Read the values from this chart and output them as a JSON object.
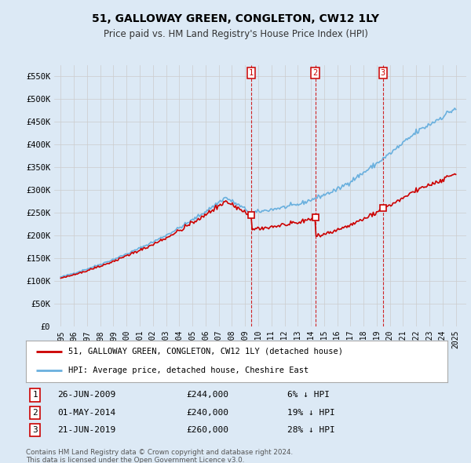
{
  "title": "51, GALLOWAY GREEN, CONGLETON, CW12 1LY",
  "subtitle": "Price paid vs. HM Land Registry's House Price Index (HPI)",
  "legend_line1": "51, GALLOWAY GREEN, CONGLETON, CW12 1LY (detached house)",
  "legend_line2": "HPI: Average price, detached house, Cheshire East",
  "footer1": "Contains HM Land Registry data © Crown copyright and database right 2024.",
  "footer2": "This data is licensed under the Open Government Licence v3.0.",
  "transactions": [
    {
      "num": 1,
      "date": "26-JUN-2009",
      "price": "£244,000",
      "hpi": "6% ↓ HPI"
    },
    {
      "num": 2,
      "date": "01-MAY-2014",
      "price": "£240,000",
      "hpi": "19% ↓ HPI"
    },
    {
      "num": 3,
      "date": "21-JUN-2019",
      "price": "£260,000",
      "hpi": "28% ↓ HPI"
    }
  ],
  "transaction_dates": [
    2009.48,
    2014.33,
    2019.47
  ],
  "transaction_prices": [
    244000,
    240000,
    260000
  ],
  "ylim": [
    0,
    575000
  ],
  "yticks": [
    0,
    50000,
    100000,
    150000,
    200000,
    250000,
    300000,
    350000,
    400000,
    450000,
    500000,
    550000
  ],
  "ytick_labels": [
    "£0",
    "£50K",
    "£100K",
    "£150K",
    "£200K",
    "£250K",
    "£300K",
    "£350K",
    "£400K",
    "£450K",
    "£500K",
    "£550K"
  ],
  "hpi_color": "#6ab0de",
  "price_color": "#cc0000",
  "bg_color": "#dce9f5",
  "grid_color": "#cccccc",
  "vline_color": "#cc0000"
}
